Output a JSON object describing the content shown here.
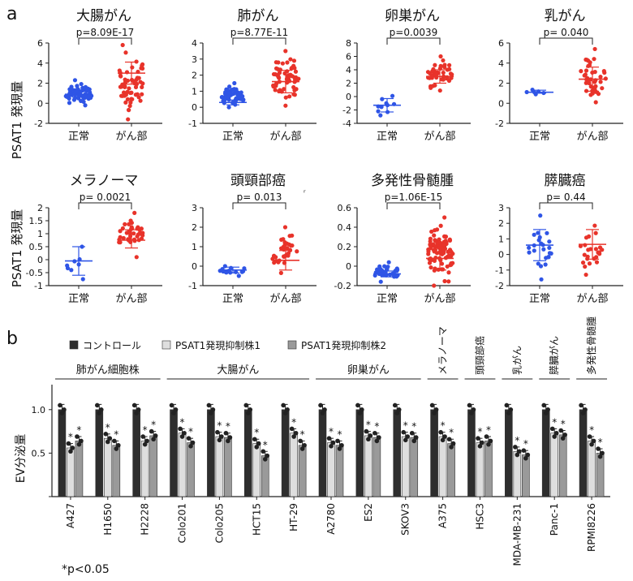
{
  "panel_a": {
    "label": "a",
    "ylabel": "PSAT1 発現量",
    "colors": {
      "normal": "#2f55e6",
      "cancer": "#e8332a"
    },
    "charts": [
      {
        "title": "大腸がん",
        "pvalue": "p=8.09E-17",
        "yticks": [
          "-2",
          "0",
          "2",
          "4",
          "6"
        ],
        "ylim": [
          -2,
          6
        ]
      },
      {
        "title": "肺がん",
        "pvalue": "p=8.77E-11",
        "yticks": [
          "-1",
          "0",
          "1",
          "2",
          "3",
          "4"
        ],
        "ylim": [
          -1,
          4
        ]
      },
      {
        "title": "卵巣がん",
        "pvalue": "p=0.0039",
        "yticks": [
          "-4",
          "-2",
          "0",
          "2",
          "4",
          "6",
          "8"
        ],
        "ylim": [
          -4,
          8
        ]
      },
      {
        "title": "乳がん",
        "pvalue": "p= 0.040",
        "yticks": [
          "-2",
          "0",
          "2",
          "4",
          "6"
        ],
        "ylim": [
          -2,
          6
        ]
      },
      {
        "title": "メラノーマ",
        "pvalue": "p= 0.0021",
        "yticks": [
          "-1",
          "-0.5",
          "0",
          "0.5",
          "1",
          "1.5",
          "2"
        ],
        "ylim": [
          -1,
          2
        ]
      },
      {
        "title": "頭頸部癌",
        "pvalue": "p= 0.013",
        "yticks": [
          "-1",
          "0",
          "1",
          "2",
          "3"
        ],
        "ylim": [
          -1,
          3
        ]
      },
      {
        "title": "多発性骨髄腫",
        "pvalue": "p=1.06E-15",
        "yticks": [
          "-0.2",
          "0",
          "0.2",
          "0.4",
          "0.6"
        ],
        "ylim": [
          -0.2,
          0.6
        ]
      },
      {
        "title": "膵臓癌",
        "pvalue": "p= 0.44",
        "yticks": [
          "-2",
          "-1",
          "0",
          "1",
          "2",
          "3"
        ],
        "ylim": [
          -2,
          3
        ]
      }
    ],
    "xticks": [
      "正常",
      "がん部"
    ],
    "stray_mark": "ʳ"
  },
  "chart_data": [
    {
      "type": "scatter",
      "title": "大腸がん",
      "categories": [
        "正常",
        "がん部"
      ],
      "ylim": [
        -2,
        6
      ],
      "ylabel": "PSAT1 発現量",
      "series": [
        {
          "values": [
            0.9,
            0.6,
            1.3,
            -0.2,
            2.3,
            1.8,
            0.2
          ]
        },
        {
          "values": [
            3.0,
            1.9,
            4.1,
            -1.6,
            5.8,
            4.9,
            0.9
          ]
        }
      ]
    },
    {
      "type": "scatter",
      "title": "肺がん",
      "categories": [
        "正常",
        "がん部"
      ],
      "ylim": [
        -1,
        4
      ],
      "series": [
        {
          "values": [
            0.3,
            0.15,
            0.45,
            0.0,
            1.5,
            0.9,
            0.05
          ]
        },
        {
          "values": [
            1.6,
            0.9,
            2.3,
            0.1,
            3.5,
            3.0,
            0.4
          ]
        }
      ]
    },
    {
      "type": "scatter",
      "title": "卵巣がん",
      "categories": [
        "正常",
        "がん部"
      ],
      "ylim": [
        -4,
        8
      ],
      "series": [
        {
          "values": [
            -1.3,
            -2.3,
            -0.3,
            -2.8,
            0.1,
            -0.1,
            -2.6
          ]
        },
        {
          "values": [
            3.0,
            2.0,
            4.0,
            0.9,
            6.0,
            5.0,
            1.5
          ]
        }
      ]
    },
    {
      "type": "scatter",
      "title": "乳がん",
      "categories": [
        "正常",
        "がん部"
      ],
      "ylim": [
        -2,
        6
      ],
      "series": [
        {
          "values": [
            1.1,
            1.0,
            1.3,
            0.9,
            1.35,
            1.3,
            0.95
          ]
        },
        {
          "values": [
            2.4,
            1.2,
            3.6,
            0.1,
            5.4,
            4.6,
            0.5
          ]
        }
      ]
    },
    {
      "type": "scatter",
      "title": "メラノーマ",
      "categories": [
        "正常",
        "がん部"
      ],
      "ylim": [
        -1,
        2
      ],
      "series": [
        {
          "values": [
            -0.05,
            -0.6,
            0.5,
            -0.75,
            0.5,
            0.3,
            -0.7
          ]
        },
        {
          "values": [
            0.75,
            0.45,
            1.15,
            0.1,
            1.8,
            1.45,
            0.3
          ]
        }
      ]
    },
    {
      "type": "scatter",
      "title": "頭頸部癌",
      "categories": [
        "正常",
        "がん部"
      ],
      "ylim": [
        -1,
        3
      ],
      "series": [
        {
          "values": [
            -0.2,
            -0.35,
            -0.05,
            -0.5,
            0.0,
            -0.1,
            -0.45
          ]
        },
        {
          "values": [
            0.3,
            -0.2,
            0.8,
            -0.35,
            2.0,
            1.2,
            -0.3
          ]
        }
      ]
    },
    {
      "type": "scatter",
      "title": "多発性骨髄腫",
      "categories": [
        "正常",
        "がん部"
      ],
      "ylim": [
        -0.2,
        0.6
      ],
      "series": [
        {
          "values": [
            -0.08,
            -0.11,
            -0.05,
            -0.16,
            0.04,
            0.01,
            -0.14
          ]
        },
        {
          "values": [
            0.08,
            -0.04,
            0.2,
            -0.2,
            0.5,
            0.35,
            -0.15
          ]
        }
      ]
    },
    {
      "type": "scatter",
      "title": "膵臓癌",
      "categories": [
        "正常",
        "がん部"
      ],
      "ylim": [
        -2,
        3
      ],
      "series": [
        {
          "values": [
            0.6,
            -0.4,
            1.6,
            -1.6,
            2.5,
            2.0,
            -1.2
          ]
        },
        {
          "values": [
            0.65,
            -0.3,
            1.6,
            -1.3,
            1.85,
            1.7,
            -1.0
          ]
        }
      ]
    },
    {
      "type": "bar",
      "ylabel": "EV分泌量",
      "yticks": [
        "0.5",
        "1.0"
      ],
      "ylim": [
        0,
        1.25
      ],
      "legend": [
        "コントロール",
        "PSAT1発現抑制株1",
        "PSAT1発現抑制株2"
      ],
      "categories": [
        "A427",
        "H1650",
        "H2228",
        "Colo201",
        "Colo205",
        "HCT15",
        "HT-29",
        "A2780",
        "ES2",
        "SKOV3",
        "A375",
        "HSC3",
        "MDA-MB-231",
        "Panc-1",
        "RPMI8226"
      ],
      "series": [
        {
          "name": "コントロール",
          "values": [
            1.0,
            1.0,
            1.0,
            1.0,
            1.0,
            1.0,
            1.0,
            1.0,
            1.0,
            1.0,
            1.0,
            1.0,
            1.0,
            1.0,
            1.0
          ]
        },
        {
          "name": "PSAT1発現抑制株1",
          "values": [
            0.56,
            0.67,
            0.64,
            0.73,
            0.69,
            0.61,
            0.73,
            0.62,
            0.7,
            0.69,
            0.69,
            0.62,
            0.52,
            0.73,
            0.64
          ]
        },
        {
          "name": "PSAT1発現抑制株2",
          "values": [
            0.64,
            0.59,
            0.7,
            0.62,
            0.68,
            0.47,
            0.59,
            0.59,
            0.68,
            0.68,
            0.61,
            0.64,
            0.48,
            0.71,
            0.5
          ]
        }
      ],
      "significance": "*",
      "groups": [
        {
          "label": "肺がん細胞株",
          "from": 0,
          "to": 2
        },
        {
          "label": "大腸がん",
          "from": 3,
          "to": 6
        },
        {
          "label": "卵巣がん",
          "from": 7,
          "to": 9
        },
        {
          "label": "メラノーマ",
          "from": 10,
          "to": 10
        },
        {
          "label": "頭頸部癌",
          "from": 11,
          "to": 11
        },
        {
          "label": "乳がん",
          "from": 12,
          "to": 12
        },
        {
          "label": "膵臓がん",
          "from": 13,
          "to": 13
        },
        {
          "label": "多発性骨髄腫",
          "from": 14,
          "to": 14
        }
      ],
      "footnote": "*p<0.05"
    }
  ],
  "panel_b": {
    "label": "b",
    "colors": {
      "control": "#2e2e2e",
      "kd1": "#dedede",
      "kd2": "#9a9a9a"
    }
  }
}
